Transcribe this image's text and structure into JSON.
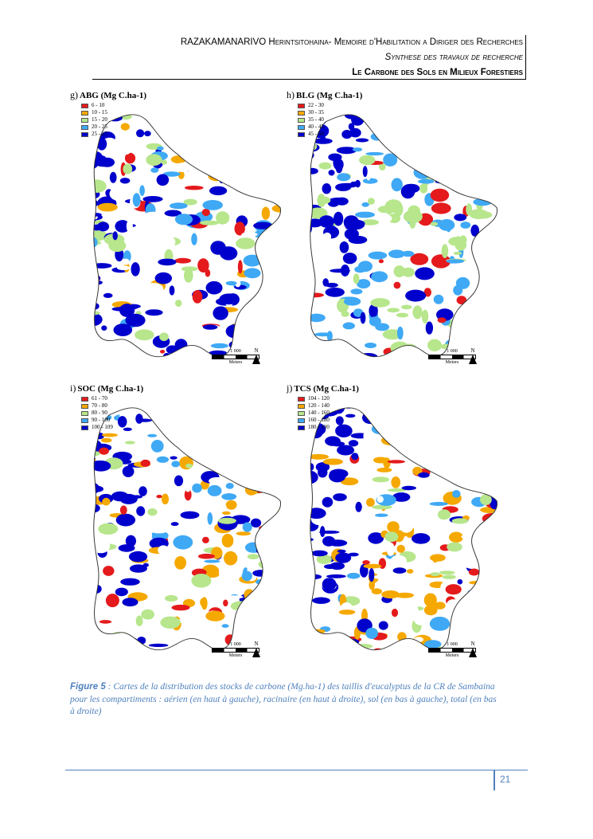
{
  "header": {
    "line1": "RAZAKAMANARIVO Herintsitohaina- Memoire d'Habilitation a Diriger des Recherches",
    "line2": "Synthese des travaux de recherche",
    "line3": "Le Carbone des Sols en Milieux Forestiers"
  },
  "panels": [
    {
      "letter": "g)",
      "title": "ABG (Mg C.ha-1)",
      "legend": [
        {
          "label": "6 - 10",
          "color": "#e41a1c"
        },
        {
          "label": "10 - 15",
          "color": "#f5a800"
        },
        {
          "label": "15 - 20",
          "color": "#b7e68c"
        },
        {
          "label": "20 - 25",
          "color": "#3fa9f5"
        },
        {
          "label": "25 - 27",
          "color": "#0000cc"
        }
      ]
    },
    {
      "letter": "h)",
      "title": "BLG (Mg C.ha-1)",
      "legend": [
        {
          "label": "22 - 30",
          "color": "#e41a1c"
        },
        {
          "label": "30 - 35",
          "color": "#f5a800"
        },
        {
          "label": "35 - 40",
          "color": "#b7e68c"
        },
        {
          "label": "40 - 45",
          "color": "#3fa9f5"
        },
        {
          "label": "45 - 50",
          "color": "#0000cc"
        }
      ]
    },
    {
      "letter": "i)",
      "title": "SOC (Mg C.ha-1)",
      "legend": [
        {
          "label": "61 - 70",
          "color": "#e41a1c"
        },
        {
          "label": "70 - 80",
          "color": "#f5a800"
        },
        {
          "label": "80 - 90",
          "color": "#b7e68c"
        },
        {
          "label": "90 - 100",
          "color": "#3fa9f5"
        },
        {
          "label": "100 - 109",
          "color": "#0000cc"
        }
      ]
    },
    {
      "letter": "j)",
      "title": "TCS (Mg C.ha-1)",
      "legend": [
        {
          "label": "104 - 120",
          "color": "#e41a1c"
        },
        {
          "label": "120 - 140",
          "color": "#f5a800"
        },
        {
          "label": "140 - 160",
          "color": "#b7e68c"
        },
        {
          "label": "160 - 180",
          "color": "#3fa9f5"
        },
        {
          "label": "180 - 190",
          "color": "#0000cc"
        }
      ]
    }
  ],
  "scale": {
    "distance": "1 000",
    "unit": "Meters",
    "north": "N"
  },
  "caption": {
    "figure_label": "Figure 5",
    "text": " : Cartes de la distribution des stocks de carbone (Mg.ha-1) des taillis d'eucalyptus de la CR de Sambaina pour les compartiments : aérien (en haut à gauche), racinaire (en haut à droite), sol (en bas à gauche), total (en bas à droite)"
  },
  "page_number": "21"
}
